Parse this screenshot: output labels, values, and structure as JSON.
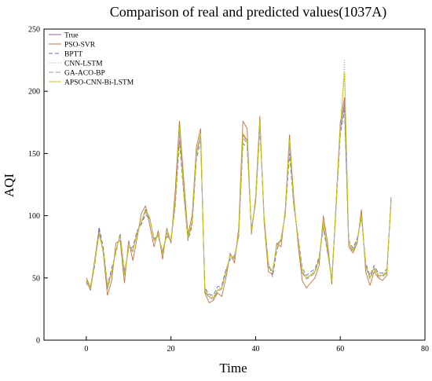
{
  "chart_data": {
    "type": "line",
    "title": "Comparison of real and predicted values(1037A)",
    "xlabel": "Time",
    "ylabel": "AQI",
    "xlim": [
      -10,
      80
    ],
    "ylim": [
      0,
      250
    ],
    "xticks": [
      0,
      20,
      40,
      60,
      80
    ],
    "yticks": [
      0,
      50,
      100,
      150,
      200,
      250
    ],
    "grid": false,
    "legend_position": "top-left",
    "x": [
      0,
      1,
      2,
      3,
      4,
      5,
      6,
      7,
      8,
      9,
      10,
      11,
      12,
      13,
      14,
      15,
      16,
      17,
      18,
      19,
      20,
      21,
      22,
      23,
      24,
      25,
      26,
      27,
      28,
      29,
      30,
      31,
      32,
      33,
      34,
      35,
      36,
      37,
      38,
      39,
      40,
      41,
      42,
      43,
      44,
      45,
      46,
      47,
      48,
      49,
      50,
      51,
      52,
      53,
      54,
      55,
      56,
      57,
      58,
      59,
      60,
      61,
      62,
      63,
      64,
      65,
      66,
      67,
      68,
      69,
      70,
      71,
      72
    ],
    "series": [
      {
        "name": "True",
        "color": "#9b5fa8",
        "dash": "",
        "values": [
          48,
          40,
          63,
          85,
          72,
          42,
          55,
          72,
          84,
          52,
          75,
          72,
          86,
          95,
          105,
          98,
          80,
          85,
          70,
          86,
          80,
          110,
          170,
          120,
          82,
          95,
          150,
          165,
          40,
          35,
          34,
          40,
          42,
          55,
          68,
          66,
          85,
          165,
          160,
          88,
          112,
          175,
          98,
          60,
          55,
          76,
          80,
          102,
          160,
          110,
          82,
          55,
          50,
          52,
          55,
          65,
          95,
          72,
          48,
          108,
          170,
          190,
          78,
          72,
          80,
          100,
          60,
          50,
          58,
          52,
          52,
          55,
          112
        ]
      },
      {
        "name": "PSO-SVR",
        "color": "#c8703c",
        "dash": "",
        "values": [
          50,
          42,
          65,
          89,
          70,
          36,
          48,
          78,
          80,
          46,
          80,
          64,
          82,
          102,
          108,
          92,
          75,
          88,
          65,
          90,
          78,
          120,
          176,
          130,
          85,
          100,
          155,
          170,
          38,
          30,
          32,
          38,
          35,
          50,
          70,
          62,
          90,
          176,
          170,
          85,
          115,
          180,
          95,
          55,
          53,
          78,
          75,
          105,
          165,
          115,
          78,
          48,
          42,
          46,
          50,
          60,
          100,
          78,
          45,
          110,
          175,
          195,
          75,
          70,
          78,
          105,
          55,
          44,
          55,
          50,
          48,
          52,
          115
        ]
      },
      {
        "name": "BPTT",
        "color": "#6a6acd",
        "dash": "5,3",
        "values": [
          46,
          42,
          60,
          91,
          75,
          44,
          58,
          70,
          86,
          55,
          73,
          75,
          88,
          93,
          101,
          97,
          82,
          83,
          72,
          83,
          82,
          107,
          160,
          118,
          80,
          92,
          145,
          160,
          42,
          37,
          36,
          43,
          44,
          57,
          65,
          68,
          83,
          158,
          155,
          90,
          110,
          170,
          100,
          62,
          51,
          72,
          82,
          100,
          150,
          108,
          84,
          58,
          52,
          55,
          57,
          67,
          90,
          70,
          50,
          105,
          165,
          185,
          80,
          74,
          82,
          98,
          62,
          52,
          60,
          54,
          54,
          57,
          110
        ]
      },
      {
        "name": "CNN-LSTM",
        "color": "#b09ac8",
        "dash": "1,2",
        "values": [
          44,
          44,
          62,
          88,
          73,
          45,
          56,
          73,
          83,
          54,
          76,
          73,
          85,
          96,
          104,
          99,
          79,
          86,
          71,
          87,
          81,
          112,
          165,
          122,
          83,
          96,
          148,
          163,
          41,
          36,
          35,
          41,
          43,
          56,
          67,
          67,
          86,
          160,
          162,
          89,
          113,
          172,
          97,
          61,
          56,
          75,
          79,
          103,
          155,
          111,
          81,
          56,
          51,
          53,
          56,
          66,
          93,
          73,
          49,
          107,
          168,
          225,
          79,
          73,
          81,
          99,
          61,
          51,
          59,
          53,
          53,
          56,
          111
        ]
      },
      {
        "name": "GA-ACO-BP",
        "color": "#999999",
        "dash": "6,3",
        "values": [
          47,
          41,
          64,
          86,
          71,
          41,
          54,
          71,
          85,
          53,
          74,
          71,
          87,
          94,
          103,
          97,
          81,
          84,
          69,
          85,
          79,
          109,
          168,
          119,
          81,
          94,
          149,
          164,
          39,
          34,
          33,
          39,
          41,
          54,
          69,
          65,
          84,
          163,
          158,
          87,
          111,
          174,
          99,
          59,
          54,
          77,
          81,
          101,
          158,
          109,
          83,
          54,
          49,
          51,
          54,
          64,
          94,
          71,
          47,
          107,
          169,
          188,
          77,
          71,
          79,
          101,
          59,
          49,
          57,
          51,
          51,
          54,
          113
        ]
      },
      {
        "name": "APSO-CNN-Bi-LSTM",
        "color": "#c8c800",
        "dash": "",
        "values": [
          48,
          41,
          63,
          85,
          72,
          43,
          55,
          72,
          84,
          52,
          75,
          72,
          86,
          95,
          104,
          98,
          80,
          85,
          70,
          86,
          80,
          111,
          171,
          121,
          82,
          95,
          151,
          166,
          40,
          35,
          34,
          40,
          42,
          55,
          68,
          66,
          85,
          166,
          161,
          88,
          112,
          176,
          98,
          60,
          55,
          76,
          80,
          102,
          161,
          110,
          82,
          55,
          50,
          52,
          55,
          65,
          95,
          72,
          48,
          108,
          171,
          215,
          78,
          72,
          80,
          100,
          60,
          50,
          58,
          52,
          52,
          55,
          112
        ]
      }
    ]
  }
}
